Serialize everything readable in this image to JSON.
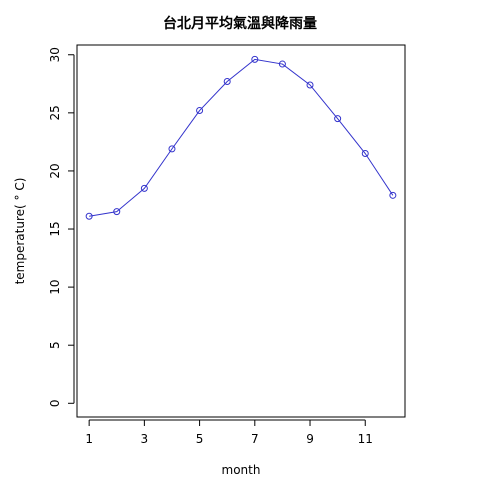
{
  "chart_data": {
    "type": "line",
    "title": "台北月平均氣溫與降雨量",
    "xlabel": "month",
    "ylabel": "temperature( ° C)",
    "x": [
      1,
      2,
      3,
      4,
      5,
      6,
      7,
      8,
      9,
      10,
      11,
      12
    ],
    "series": [
      {
        "values": [
          16.1,
          16.5,
          18.5,
          21.9,
          25.2,
          27.7,
          29.6,
          29.2,
          27.4,
          24.5,
          21.5,
          17.9
        ]
      }
    ],
    "xlim": [
      0.56,
      12.44
    ],
    "ylim": [
      -1.18,
      30.84
    ],
    "x_ticks": [
      1,
      3,
      5,
      7,
      9,
      11
    ],
    "y_ticks": [
      0,
      5,
      10,
      15,
      20,
      25,
      30
    ],
    "grid": false,
    "series_color": "#3333cc"
  }
}
